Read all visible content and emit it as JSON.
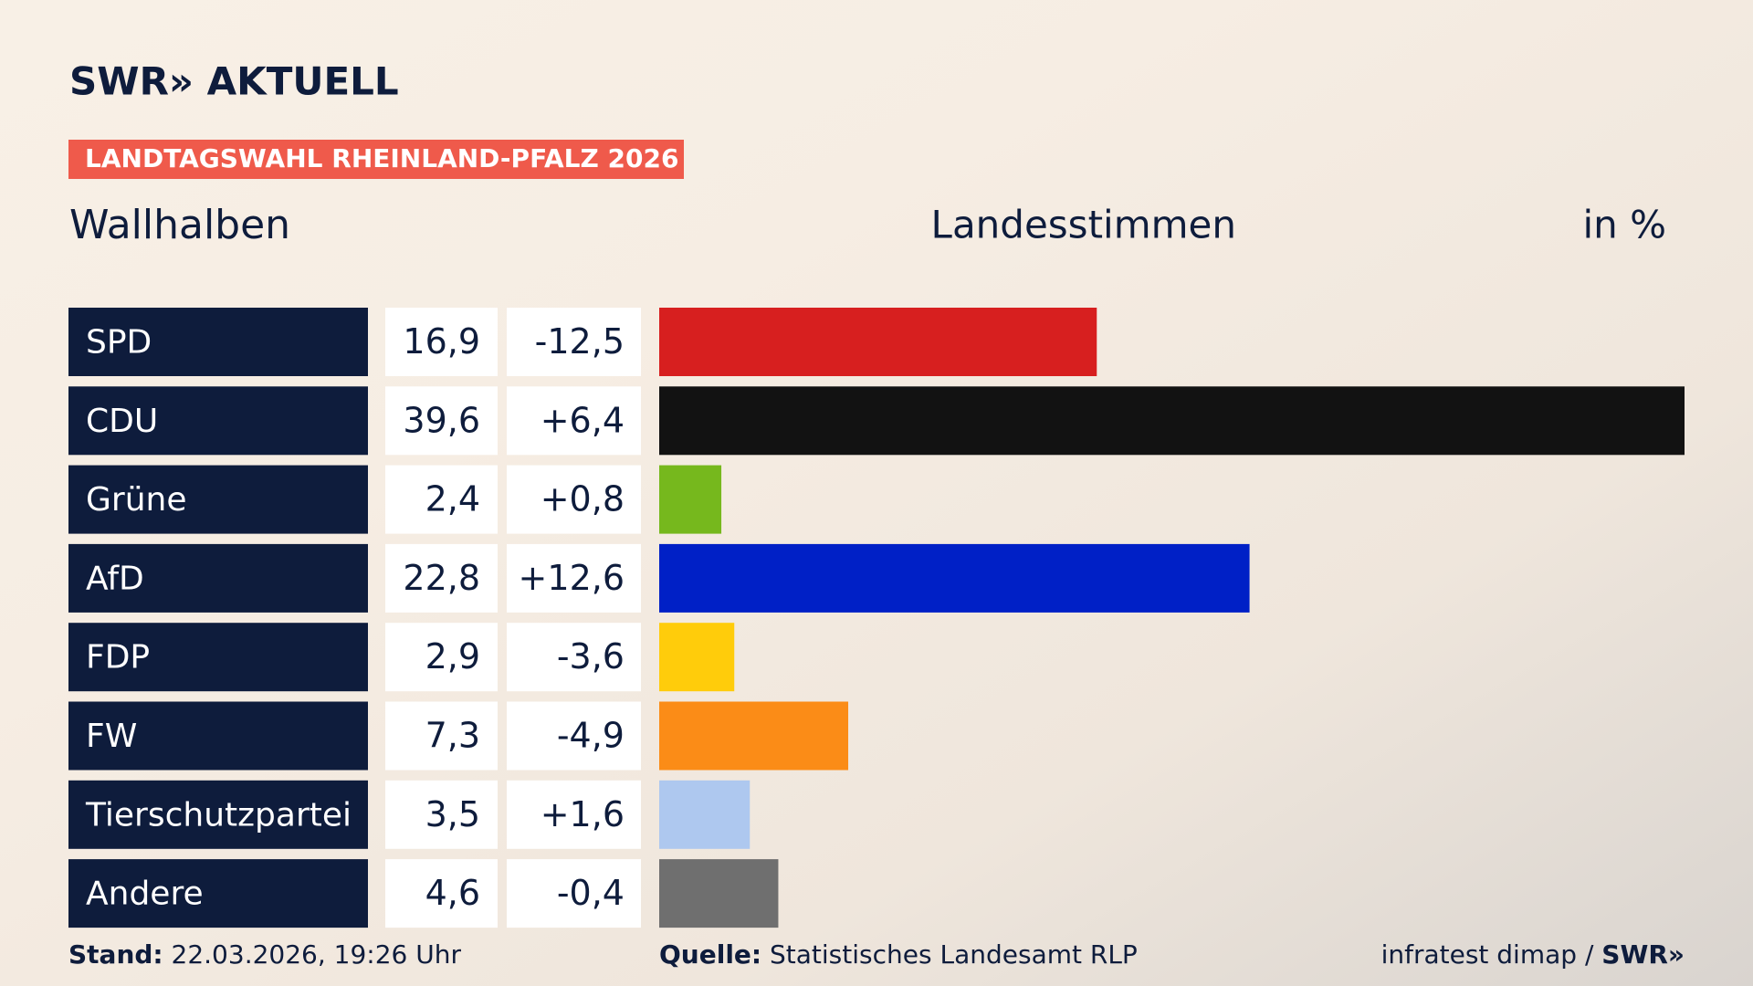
{
  "chart_data": {
    "type": "bar",
    "brand": "SWR» AKTUELL",
    "tag": "LANDTAGSWAHL RHEINLAND-PFALZ 2026",
    "title": "Wallhalben",
    "subtitle": "Landesstimmen",
    "unit": "in %",
    "categories": [
      "SPD",
      "CDU",
      "Grüne",
      "AfD",
      "FDP",
      "FW",
      "Tierschutzpartei",
      "Andere"
    ],
    "values": [
      16.9,
      39.6,
      2.4,
      22.8,
      2.9,
      7.3,
      3.5,
      4.6
    ],
    "value_labels": [
      "16,9",
      "39,6",
      "2,4",
      "22,8",
      "2,9",
      "7,3",
      "3,5",
      "4,6"
    ],
    "changes": [
      -12.5,
      6.4,
      0.8,
      12.6,
      -3.6,
      -4.9,
      1.6,
      -0.4
    ],
    "change_labels": [
      "-12,5",
      "+6,4",
      "+0,8",
      "+12,6",
      "-3,6",
      "-4,9",
      "+1,6",
      "-0,4"
    ],
    "colors": [
      "#d71f1f",
      "#121212",
      "#76b81d",
      "#0020c6",
      "#ffcc0b",
      "#fb8c17",
      "#aec8ef",
      "#6f6f6f"
    ],
    "xlim": [
      0,
      39.6
    ],
    "footer": {
      "stand_label": "Stand:",
      "stand": "22.03.2026, 19:26 Uhr",
      "source_label": "Quelle:",
      "source": "Statistisches Landesamt RLP",
      "credit": "infratest dimap /",
      "credit_brand": "SWR»"
    }
  }
}
